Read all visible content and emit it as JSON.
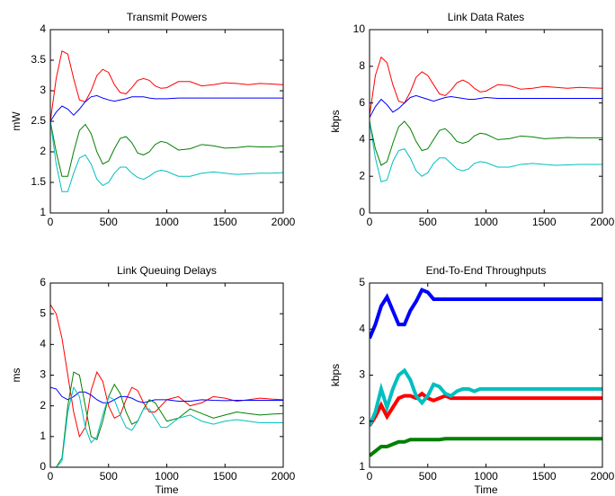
{
  "chart_data": [
    {
      "type": "line",
      "title": "Transmit Powers",
      "ylabel": "mW",
      "x": [
        0,
        50,
        100,
        150,
        200,
        250,
        300,
        350,
        400,
        450,
        500,
        550,
        600,
        650,
        700,
        750,
        800,
        850,
        900,
        950,
        1000,
        1100,
        1200,
        1300,
        1400,
        1500,
        1600,
        1700,
        1800,
        1900,
        2000
      ],
      "xlim": [
        0,
        2000
      ],
      "xticks": [
        0,
        500,
        1000,
        1500,
        2000
      ],
      "ylim": [
        1,
        4
      ],
      "yticks": [
        1,
        1.5,
        2,
        2.5,
        3,
        3.5,
        4
      ],
      "series": [
        {
          "color": "#ff0000",
          "values": [
            2.5,
            3.2,
            3.65,
            3.6,
            3.2,
            2.85,
            2.82,
            3.0,
            3.25,
            3.35,
            3.3,
            3.1,
            2.97,
            2.95,
            3.05,
            3.17,
            3.2,
            3.17,
            3.08,
            3.04,
            3.05,
            3.15,
            3.15,
            3.08,
            3.1,
            3.13,
            3.12,
            3.1,
            3.12,
            3.11,
            3.1
          ]
        },
        {
          "color": "#0000ff",
          "values": [
            2.5,
            2.65,
            2.75,
            2.7,
            2.6,
            2.7,
            2.82,
            2.9,
            2.92,
            2.88,
            2.85,
            2.83,
            2.85,
            2.87,
            2.9,
            2.9,
            2.9,
            2.88,
            2.87,
            2.87,
            2.87,
            2.88,
            2.88,
            2.88,
            2.88,
            2.88,
            2.88,
            2.88,
            2.88,
            2.88,
            2.88
          ]
        },
        {
          "color": "#008000",
          "values": [
            2.5,
            2.0,
            1.6,
            1.6,
            2.0,
            2.35,
            2.45,
            2.3,
            2.0,
            1.8,
            1.85,
            2.05,
            2.22,
            2.25,
            2.15,
            1.98,
            1.95,
            2.0,
            2.12,
            2.17,
            2.15,
            2.03,
            2.05,
            2.12,
            2.1,
            2.06,
            2.07,
            2.09,
            2.08,
            2.08,
            2.1
          ]
        },
        {
          "color": "#00bfbf",
          "values": [
            2.5,
            1.8,
            1.35,
            1.35,
            1.65,
            1.9,
            1.95,
            1.8,
            1.55,
            1.45,
            1.5,
            1.65,
            1.75,
            1.75,
            1.65,
            1.58,
            1.55,
            1.6,
            1.67,
            1.7,
            1.68,
            1.6,
            1.6,
            1.65,
            1.67,
            1.65,
            1.63,
            1.64,
            1.65,
            1.65,
            1.66
          ]
        }
      ]
    },
    {
      "type": "line",
      "title": "Link Data Rates",
      "ylabel": "kbps",
      "x": [
        0,
        50,
        100,
        150,
        200,
        250,
        300,
        350,
        400,
        450,
        500,
        550,
        600,
        650,
        700,
        750,
        800,
        850,
        900,
        950,
        1000,
        1100,
        1200,
        1300,
        1400,
        1500,
        1600,
        1700,
        1800,
        1900,
        2000
      ],
      "xlim": [
        0,
        2000
      ],
      "xticks": [
        0,
        500,
        1000,
        1500,
        2000
      ],
      "ylim": [
        0,
        10
      ],
      "yticks": [
        0,
        2,
        4,
        6,
        8,
        10
      ],
      "series": [
        {
          "color": "#ff0000",
          "values": [
            5.3,
            7.5,
            8.5,
            8.2,
            7.0,
            6.1,
            6.0,
            6.6,
            7.4,
            7.7,
            7.5,
            7.0,
            6.5,
            6.4,
            6.7,
            7.1,
            7.25,
            7.1,
            6.8,
            6.6,
            6.65,
            7.0,
            6.95,
            6.75,
            6.8,
            6.9,
            6.85,
            6.8,
            6.85,
            6.82,
            6.8
          ]
        },
        {
          "color": "#0000ff",
          "values": [
            5.2,
            5.8,
            6.2,
            5.9,
            5.5,
            5.7,
            6.0,
            6.3,
            6.4,
            6.3,
            6.2,
            6.1,
            6.2,
            6.3,
            6.35,
            6.3,
            6.25,
            6.2,
            6.2,
            6.25,
            6.3,
            6.25,
            6.25,
            6.25,
            6.25,
            6.25,
            6.25,
            6.25,
            6.25,
            6.25,
            6.25
          ]
        },
        {
          "color": "#008000",
          "values": [
            5.0,
            3.5,
            2.6,
            2.8,
            3.8,
            4.7,
            5.0,
            4.6,
            3.9,
            3.4,
            3.5,
            4.0,
            4.5,
            4.6,
            4.3,
            3.9,
            3.8,
            3.9,
            4.2,
            4.35,
            4.3,
            4.0,
            4.05,
            4.2,
            4.15,
            4.05,
            4.08,
            4.12,
            4.1,
            4.1,
            4.1
          ]
        },
        {
          "color": "#00bfbf",
          "values": [
            5.0,
            3.0,
            1.7,
            1.8,
            2.8,
            3.4,
            3.5,
            3.0,
            2.3,
            2.0,
            2.2,
            2.7,
            3.0,
            3.0,
            2.7,
            2.4,
            2.3,
            2.4,
            2.7,
            2.8,
            2.75,
            2.5,
            2.5,
            2.65,
            2.7,
            2.65,
            2.6,
            2.62,
            2.65,
            2.65,
            2.65
          ]
        }
      ]
    },
    {
      "type": "line",
      "title": "Link Queuing Delays",
      "ylabel": "ms",
      "xlabel": "Time",
      "x": [
        0,
        50,
        100,
        150,
        200,
        250,
        300,
        350,
        400,
        450,
        500,
        550,
        600,
        650,
        700,
        750,
        800,
        850,
        900,
        950,
        1000,
        1100,
        1200,
        1300,
        1400,
        1500,
        1600,
        1700,
        1800,
        1900,
        2000
      ],
      "xlim": [
        0,
        2000
      ],
      "xticks": [
        0,
        500,
        1000,
        1500,
        2000
      ],
      "ylim": [
        0,
        6
      ],
      "yticks": [
        0,
        1,
        2,
        3,
        4,
        5,
        6
      ],
      "series": [
        {
          "color": "#ff0000",
          "values": [
            5.3,
            5.0,
            4.2,
            3.0,
            1.8,
            1.0,
            1.3,
            2.5,
            3.1,
            2.8,
            2.0,
            1.6,
            1.7,
            2.2,
            2.6,
            2.5,
            2.1,
            1.8,
            1.8,
            2.0,
            2.2,
            2.3,
            2.0,
            2.1,
            2.3,
            2.25,
            2.15,
            2.2,
            2.25,
            2.22,
            2.2
          ]
        },
        {
          "color": "#0000ff",
          "values": [
            2.6,
            2.55,
            2.3,
            2.2,
            2.3,
            2.45,
            2.45,
            2.35,
            2.2,
            2.1,
            2.1,
            2.2,
            2.3,
            2.3,
            2.25,
            2.15,
            2.1,
            2.15,
            2.2,
            2.2,
            2.2,
            2.15,
            2.15,
            2.2,
            2.18,
            2.17,
            2.18,
            2.18,
            2.18,
            2.18,
            2.18
          ]
        },
        {
          "color": "#008000",
          "values": [
            0,
            0,
            0.3,
            2.0,
            3.1,
            3.0,
            2.0,
            1.0,
            0.9,
            1.5,
            2.3,
            2.7,
            2.4,
            1.8,
            1.4,
            1.5,
            1.9,
            2.2,
            2.1,
            1.8,
            1.5,
            1.6,
            1.9,
            1.75,
            1.6,
            1.7,
            1.8,
            1.75,
            1.7,
            1.73,
            1.75
          ]
        },
        {
          "color": "#00bfbf",
          "values": [
            0,
            0,
            0.2,
            1.8,
            2.6,
            2.3,
            1.3,
            0.8,
            1.0,
            1.7,
            2.3,
            2.2,
            1.7,
            1.3,
            1.2,
            1.5,
            1.9,
            1.9,
            1.6,
            1.3,
            1.3,
            1.6,
            1.7,
            1.5,
            1.4,
            1.5,
            1.55,
            1.5,
            1.45,
            1.45,
            1.45
          ]
        }
      ]
    },
    {
      "type": "line",
      "title": "End-To-End Throughputs",
      "ylabel": "kbps",
      "xlabel": "Time",
      "x": [
        0,
        50,
        100,
        150,
        200,
        250,
        300,
        350,
        400,
        450,
        500,
        550,
        600,
        650,
        700,
        750,
        800,
        850,
        900,
        950,
        1000,
        1100,
        1200,
        1300,
        1400,
        1500,
        1600,
        1700,
        1800,
        1900,
        2000
      ],
      "xlim": [
        0,
        2000
      ],
      "xticks": [
        0,
        500,
        1000,
        1500,
        2000
      ],
      "ylim": [
        1,
        5
      ],
      "yticks": [
        1,
        2,
        3,
        4,
        5
      ],
      "series": [
        {
          "color": "#0000ff",
          "values": [
            3.8,
            4.1,
            4.5,
            4.7,
            4.4,
            4.1,
            4.1,
            4.4,
            4.6,
            4.85,
            4.8,
            4.65,
            4.65,
            4.65,
            4.65,
            4.65,
            4.65,
            4.65,
            4.65,
            4.65,
            4.65,
            4.65,
            4.65,
            4.65,
            4.65,
            4.65,
            4.65,
            4.65,
            4.65,
            4.65,
            4.65
          ]
        },
        {
          "color": "#ff0000",
          "values": [
            1.9,
            2.1,
            2.35,
            2.1,
            2.3,
            2.5,
            2.55,
            2.55,
            2.5,
            2.6,
            2.5,
            2.45,
            2.5,
            2.55,
            2.5,
            2.5,
            2.5,
            2.5,
            2.5,
            2.5,
            2.5,
            2.5,
            2.5,
            2.5,
            2.5,
            2.5,
            2.5,
            2.5,
            2.5,
            2.5,
            2.5
          ]
        },
        {
          "color": "#00bfbf",
          "values": [
            1.9,
            2.2,
            2.7,
            2.3,
            2.7,
            3.0,
            3.1,
            2.9,
            2.55,
            2.4,
            2.55,
            2.8,
            2.75,
            2.6,
            2.55,
            2.65,
            2.7,
            2.7,
            2.65,
            2.7,
            2.7,
            2.7,
            2.7,
            2.7,
            2.7,
            2.7,
            2.7,
            2.7,
            2.7,
            2.7,
            2.7
          ]
        },
        {
          "color": "#008000",
          "values": [
            1.25,
            1.35,
            1.45,
            1.45,
            1.5,
            1.55,
            1.55,
            1.6,
            1.6,
            1.6,
            1.6,
            1.6,
            1.6,
            1.62,
            1.62,
            1.62,
            1.62,
            1.62,
            1.62,
            1.62,
            1.62,
            1.62,
            1.62,
            1.62,
            1.62,
            1.62,
            1.62,
            1.62,
            1.62,
            1.62,
            1.62
          ]
        }
      ]
    }
  ]
}
